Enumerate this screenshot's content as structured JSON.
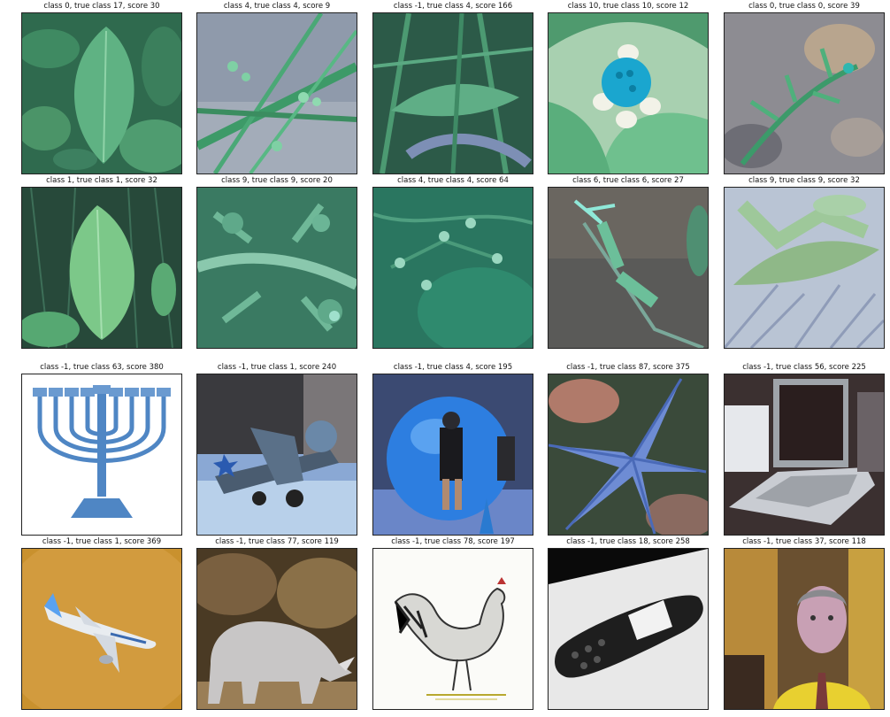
{
  "groups": [
    {
      "cells": [
        {
          "title": "class 0, true class 17, score 30",
          "image": "plant-leaves"
        },
        {
          "title": "class 4, true class 4, score 9",
          "image": "grass-flowers"
        },
        {
          "title": "class -1, true class 4, score 166",
          "image": "grass-leaves"
        },
        {
          "title": "class 10, true class 10, score 12",
          "image": "blue-flower"
        },
        {
          "title": "class 0, true class 0, score 39",
          "image": "plant-on-rocks"
        }
      ]
    },
    {
      "cells": [
        {
          "title": "class 1, true class 1, score 32",
          "image": "single-leaf"
        },
        {
          "title": "class 9, true class 9, score 20",
          "image": "thistle-plant"
        },
        {
          "title": "class 4, true class 4, score 64",
          "image": "flower-buds"
        },
        {
          "title": "class 6, true class 6, score 27",
          "image": "thistle-bud"
        },
        {
          "title": "class 9, true class 9, score 32",
          "image": "spiky-plant"
        }
      ]
    },
    {
      "cells": [
        {
          "title": "class -1, true class 63, score 380",
          "image": "menorah"
        },
        {
          "title": "class -1, true class 1, score 240",
          "image": "airplane-hangar"
        },
        {
          "title": "class -1, true class 4, score 195",
          "image": "blue-ball"
        },
        {
          "title": "class -1, true class 87, score 375",
          "image": "starfish"
        },
        {
          "title": "class -1, true class 56, score 225",
          "image": "laptop"
        }
      ]
    },
    {
      "cells": [
        {
          "title": "class -1, true class 1, score 369",
          "image": "airliner"
        },
        {
          "title": "class -1, true class 77, score 119",
          "image": "rhinoceros"
        },
        {
          "title": "class -1, true class 78, score 197",
          "image": "rooster-sketch"
        },
        {
          "title": "class -1, true class 18, score 258",
          "image": "cellphone"
        },
        {
          "title": "class -1, true class 37, score 118",
          "image": "man-portrait"
        }
      ]
    }
  ]
}
